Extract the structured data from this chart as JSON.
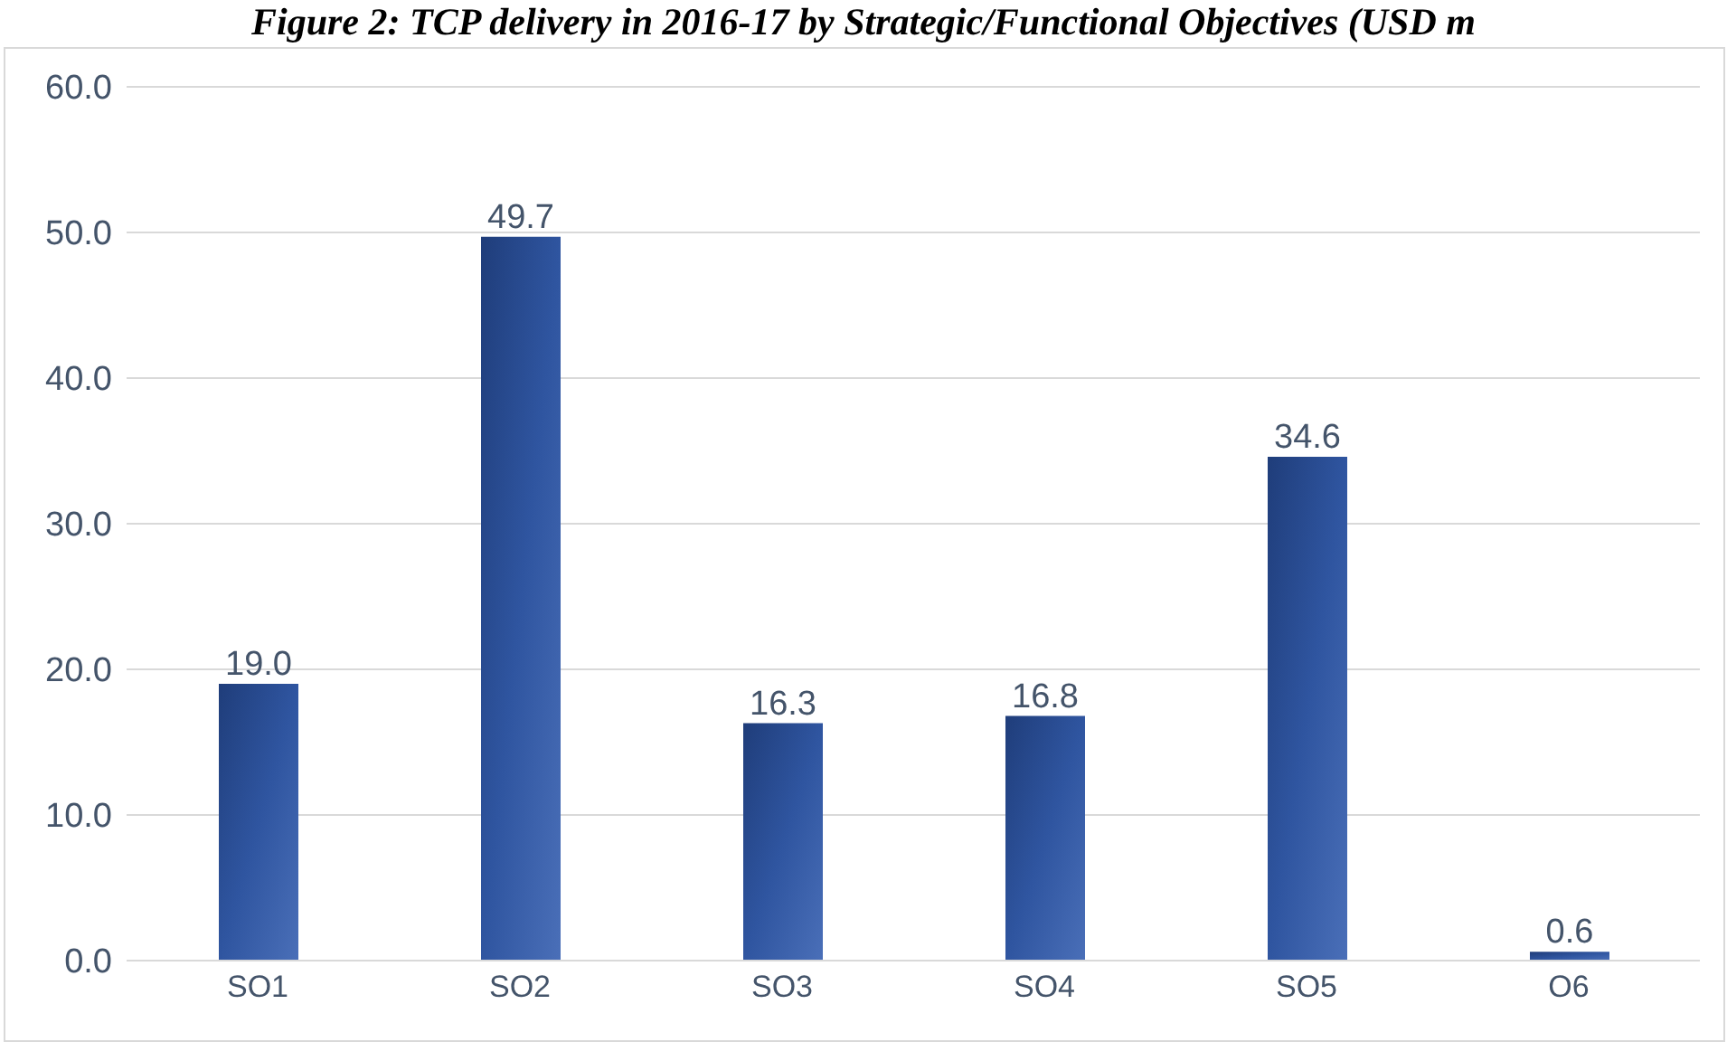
{
  "chart_data": {
    "type": "bar",
    "title": "Figure 2: TCP delivery in 2016-17 by Strategic/Functional Objectives (USD m",
    "categories": [
      "SO1",
      "SO2",
      "SO3",
      "SO4",
      "SO5",
      "O6"
    ],
    "values": [
      19.0,
      49.7,
      16.3,
      16.8,
      34.6,
      0.6
    ],
    "color": "#2f55a0",
    "ylim": [
      0,
      60
    ],
    "yticks": [
      {
        "value": 0,
        "label": "0.0"
      },
      {
        "value": 10,
        "label": "10.0"
      },
      {
        "value": 20,
        "label": "20.0"
      },
      {
        "value": 30,
        "label": "30.0"
      },
      {
        "value": 40,
        "label": "40.0"
      },
      {
        "value": 50,
        "label": "50.0"
      },
      {
        "value": 60,
        "label": "60.0"
      }
    ],
    "grid": "y",
    "value_labels": [
      "19.0",
      "49.7",
      "16.3",
      "16.8",
      "34.6",
      "0.6"
    ]
  }
}
